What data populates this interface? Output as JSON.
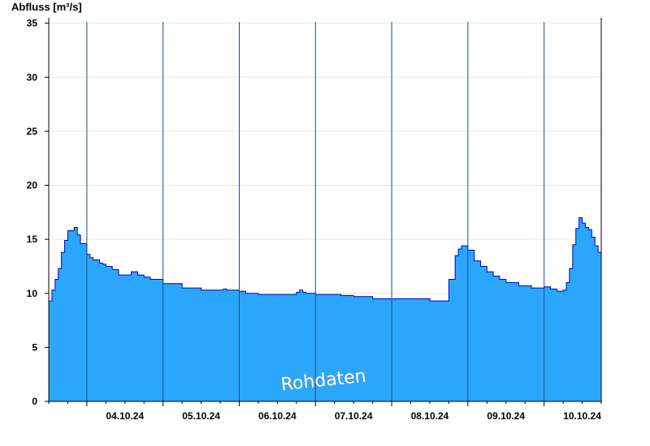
{
  "chart_data": {
    "type": "area",
    "ylabel": "Abfluss [m³/s]",
    "ylim": [
      0,
      35.5
    ],
    "yticks": [
      0,
      5,
      10,
      15,
      20,
      25,
      30,
      35
    ],
    "xlim": [
      "2024-10-03T12:00",
      "2024-10-10T18:00"
    ],
    "day_boundaries": [
      "2024-10-04T00:00",
      "2024-10-05T00:00",
      "2024-10-06T00:00",
      "2024-10-07T00:00",
      "2024-10-08T00:00",
      "2024-10-09T00:00",
      "2024-10-10T00:00"
    ],
    "xtick_labels": [
      "04.10.24",
      "05.10.24",
      "06.10.24",
      "07.10.24",
      "08.10.24",
      "09.10.24",
      "10.10.24"
    ],
    "xtick_positions": [
      "2024-10-04T12:00",
      "2024-10-05T12:00",
      "2024-10-06T12:00",
      "2024-10-07T12:00",
      "2024-10-08T12:00",
      "2024-10-09T12:00",
      "2024-10-10T12:00"
    ],
    "annotation": "Rohdaten",
    "grid": true,
    "colors": {
      "fill": "#2aa7fc",
      "line": "#0000cc",
      "gridline": "#e6e6e6",
      "axis": "#000000"
    },
    "series": [
      {
        "x": [
          "2024-10-03T12:00",
          "2024-10-03T13:00",
          "2024-10-03T14:00",
          "2024-10-03T15:00",
          "2024-10-03T16:00",
          "2024-10-03T17:00",
          "2024-10-03T18:00",
          "2024-10-03T19:00",
          "2024-10-03T20:00",
          "2024-10-03T21:00",
          "2024-10-03T22:00",
          "2024-10-04T00:00",
          "2024-10-04T01:00",
          "2024-10-04T02:00",
          "2024-10-04T04:00",
          "2024-10-04T05:00",
          "2024-10-04T06:00",
          "2024-10-04T08:00",
          "2024-10-04T10:00",
          "2024-10-04T12:00",
          "2024-10-04T14:00",
          "2024-10-04T16:00",
          "2024-10-04T18:00",
          "2024-10-04T20:00",
          "2024-10-05T00:00",
          "2024-10-05T06:00",
          "2024-10-05T12:00",
          "2024-10-05T18:00",
          "2024-10-05T19:00",
          "2024-10-05T20:00",
          "2024-10-06T00:00",
          "2024-10-06T02:00",
          "2024-10-06T04:00",
          "2024-10-06T06:00",
          "2024-10-06T12:00",
          "2024-10-06T18:00",
          "2024-10-06T19:00",
          "2024-10-06T20:00",
          "2024-10-06T21:00",
          "2024-10-07T00:00",
          "2024-10-07T08:00",
          "2024-10-07T12:00",
          "2024-10-07T18:00",
          "2024-10-07T19:00",
          "2024-10-07T20:00",
          "2024-10-08T00:00",
          "2024-10-08T06:00",
          "2024-10-08T12:00",
          "2024-10-08T18:00",
          "2024-10-08T20:00",
          "2024-10-08T21:00",
          "2024-10-08T22:00",
          "2024-10-09T00:00",
          "2024-10-09T02:00",
          "2024-10-09T04:00",
          "2024-10-09T06:00",
          "2024-10-09T08:00",
          "2024-10-09T10:00",
          "2024-10-09T12:00",
          "2024-10-09T16:00",
          "2024-10-09T20:00",
          "2024-10-10T00:00",
          "2024-10-10T02:00",
          "2024-10-10T04:00",
          "2024-10-10T06:00",
          "2024-10-10T07:00",
          "2024-10-10T08:00",
          "2024-10-10T09:00",
          "2024-10-10T10:00",
          "2024-10-10T11:00",
          "2024-10-10T12:00",
          "2024-10-10T13:00",
          "2024-10-10T14:00",
          "2024-10-10T15:00",
          "2024-10-10T16:00",
          "2024-10-10T17:00",
          "2024-10-10T18:00"
        ],
        "values": [
          9.3,
          10.3,
          11.3,
          12.3,
          13.8,
          14.9,
          15.8,
          15.8,
          16.1,
          15.4,
          14.6,
          13.6,
          13.3,
          13.1,
          12.8,
          12.7,
          12.5,
          12.2,
          11.7,
          11.7,
          12.0,
          11.7,
          11.5,
          11.3,
          10.9,
          10.5,
          10.3,
          10.3,
          10.4,
          10.3,
          10.2,
          10.0,
          10.0,
          9.9,
          9.9,
          10.1,
          10.3,
          10.1,
          10.0,
          9.9,
          9.8,
          9.7,
          9.5,
          9.5,
          9.5,
          9.5,
          9.5,
          9.3,
          11.3,
          13.5,
          14.1,
          14.4,
          14.0,
          13.0,
          12.5,
          12.0,
          11.6,
          11.3,
          11.0,
          10.7,
          10.5,
          10.6,
          10.4,
          10.2,
          10.3,
          11.0,
          12.3,
          14.5,
          16.0,
          17.0,
          16.5,
          16.1,
          15.9,
          15.2,
          14.4,
          13.8,
          13.4
        ]
      }
    ]
  }
}
